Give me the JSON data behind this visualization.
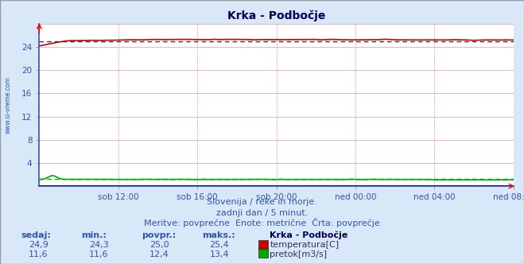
{
  "title": "Krka - Podbočje",
  "bg_color": "#d8e8f8",
  "plot_bg_color": "#ffffff",
  "grid_color_h": "#cc9999",
  "grid_color_v": "#cc9999",
  "grid_color_h_minor": "#ddaaaa",
  "x_labels": [
    "sob 12:00",
    "sob 16:00",
    "sob 20:00",
    "ned 00:00",
    "ned 04:00",
    "ned 08:00"
  ],
  "x_ticks_frac": [
    0.1667,
    0.3333,
    0.5,
    0.6667,
    0.8333,
    1.0
  ],
  "ylim": [
    0,
    28
  ],
  "yticks": [
    4,
    8,
    12,
    16,
    20,
    24
  ],
  "temp_avg": 25.0,
  "flow_avg": 1.2,
  "temp_color": "#cc0000",
  "flow_color": "#00aa00",
  "height_color": "#0000cc",
  "avg_line_color_temp": "#333333",
  "avg_line_color_flow": "#00aa00",
  "subtitle1": "Slovenija / reke in morje.",
  "subtitle2": "zadnji dan / 5 minut.",
  "subtitle3": "Meritve: povprečne  Enote: metrične  Črta: povprečje",
  "watermark": "www.si-vreme.com",
  "table_headers": [
    "sedaj:",
    "min.:",
    "povpr.:",
    "maks.:"
  ],
  "table_row1": [
    "24,9",
    "24,3",
    "25,0",
    "25,4"
  ],
  "table_row2": [
    "11,6",
    "11,6",
    "12,4",
    "13,4"
  ],
  "legend_title": "Krka - Podbočje",
  "legend_temp": "temperatura[C]",
  "legend_flow": "pretok[m3/s]"
}
